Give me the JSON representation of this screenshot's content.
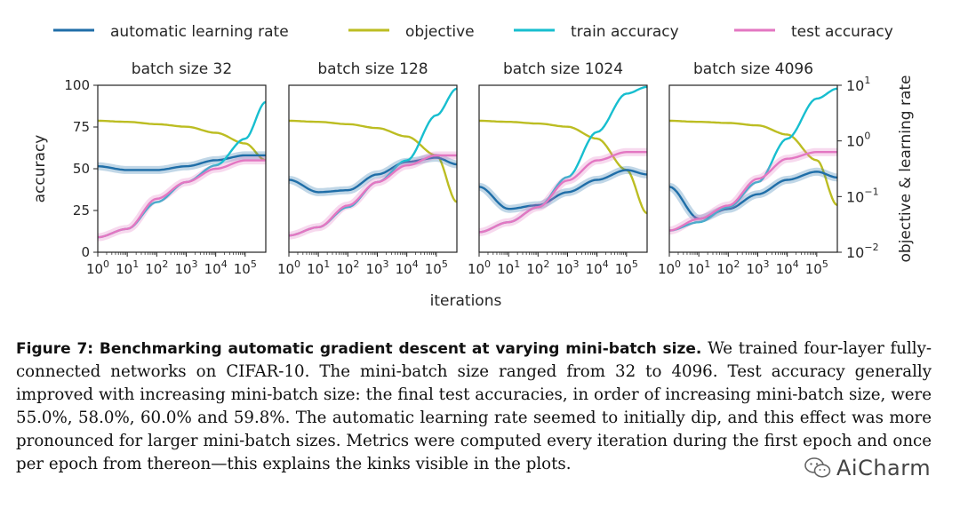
{
  "figure": {
    "legend": [
      {
        "name": "automatic learning rate",
        "color": "#1f6ea8"
      },
      {
        "name": "objective",
        "color": "#bcbd22"
      },
      {
        "name": "train accuracy",
        "color": "#17becf"
      },
      {
        "name": "test accuracy",
        "color": "#e377c2"
      }
    ],
    "xlabel": "iterations",
    "ylabel_left": "accuracy",
    "ylabel_right": "objective & learning rate"
  },
  "chart_data": [
    {
      "type": "line",
      "title": "batch size 32",
      "xscale": "log",
      "xlim": [
        1,
        500000
      ],
      "ylim_left": [
        0,
        100
      ],
      "yscale_right": "log",
      "ylim_right": [
        0.01,
        10
      ],
      "x": [
        1,
        10,
        100,
        1000,
        10000,
        100000,
        500000
      ],
      "series": [
        {
          "name": "automatic learning rate",
          "axis": "right",
          "values": [
            0.35,
            0.3,
            0.3,
            0.35,
            0.45,
            0.55,
            0.55
          ]
        },
        {
          "name": "objective",
          "axis": "right",
          "values": [
            2.3,
            2.2,
            2.0,
            1.8,
            1.4,
            0.9,
            0.45
          ]
        },
        {
          "name": "train accuracy",
          "axis": "left",
          "values": [
            9,
            14,
            30,
            42,
            52,
            68,
            90
          ]
        },
        {
          "name": "test accuracy",
          "axis": "left",
          "values": [
            9,
            14,
            32,
            42,
            50,
            55,
            55
          ]
        }
      ]
    },
    {
      "type": "line",
      "title": "batch size 128",
      "xscale": "log",
      "xlim": [
        1,
        500000
      ],
      "ylim_left": [
        0,
        100
      ],
      "yscale_right": "log",
      "ylim_right": [
        0.01,
        10
      ],
      "x": [
        1,
        10,
        100,
        1000,
        10000,
        100000,
        500000
      ],
      "series": [
        {
          "name": "automatic learning rate",
          "axis": "right",
          "values": [
            0.2,
            0.12,
            0.13,
            0.25,
            0.42,
            0.5,
            0.38
          ]
        },
        {
          "name": "objective",
          "axis": "right",
          "values": [
            2.3,
            2.2,
            2.0,
            1.7,
            1.2,
            0.55,
            0.08
          ]
        },
        {
          "name": "train accuracy",
          "axis": "left",
          "values": [
            10,
            15,
            27,
            42,
            55,
            82,
            98
          ]
        },
        {
          "name": "test accuracy",
          "axis": "left",
          "values": [
            10,
            15,
            28,
            42,
            52,
            58,
            58
          ]
        }
      ]
    },
    {
      "type": "line",
      "title": "batch size 1024",
      "xscale": "log",
      "xlim": [
        1,
        500000
      ],
      "ylim_left": [
        0,
        100
      ],
      "yscale_right": "log",
      "ylim_right": [
        0.01,
        10
      ],
      "x": [
        1,
        10,
        100,
        1000,
        10000,
        100000,
        500000
      ],
      "series": [
        {
          "name": "automatic learning rate",
          "axis": "right",
          "values": [
            0.15,
            0.06,
            0.07,
            0.12,
            0.2,
            0.3,
            0.25
          ]
        },
        {
          "name": "objective",
          "axis": "right",
          "values": [
            2.3,
            2.2,
            2.05,
            1.8,
            1.1,
            0.3,
            0.05
          ]
        },
        {
          "name": "train accuracy",
          "axis": "left",
          "values": [
            12,
            18,
            27,
            45,
            72,
            95,
            99
          ]
        },
        {
          "name": "test accuracy",
          "axis": "left",
          "values": [
            12,
            18,
            27,
            43,
            55,
            60,
            60
          ]
        }
      ]
    },
    {
      "type": "line",
      "title": "batch size 4096",
      "xscale": "log",
      "xlim": [
        1,
        500000
      ],
      "ylim_left": [
        0,
        100
      ],
      "yscale_right": "log",
      "ylim_right": [
        0.01,
        10
      ],
      "x": [
        1,
        10,
        100,
        1000,
        10000,
        100000,
        500000
      ],
      "series": [
        {
          "name": "automatic learning rate",
          "axis": "right",
          "values": [
            0.15,
            0.04,
            0.06,
            0.11,
            0.2,
            0.28,
            0.22
          ]
        },
        {
          "name": "objective",
          "axis": "right",
          "values": [
            2.3,
            2.2,
            2.1,
            1.9,
            1.3,
            0.45,
            0.07
          ]
        },
        {
          "name": "train accuracy",
          "axis": "left",
          "values": [
            13,
            18,
            27,
            42,
            68,
            92,
            98
          ]
        },
        {
          "name": "test accuracy",
          "axis": "left",
          "values": [
            13,
            20,
            28,
            44,
            56,
            60,
            60
          ]
        }
      ]
    }
  ],
  "caption": {
    "label": "Figure 7: Benchmarking automatic gradient descent at varying mini-batch size.",
    "text": "We trained four-layer fully-connected networks on CIFAR-10. The mini-batch size ranged from 32 to 4096. Test accuracy generally improved with increasing mini-batch size: the final test accuracies, in order of increasing mini-batch size, were 55.0%, 58.0%, 60.0% and 59.8%. The automatic learning rate seemed to initially dip, and this effect was more pronounced for larger mini-batch sizes. Metrics were computed every iteration during the first epoch and once per epoch from thereon—this explains the kinks visible in the plots."
  },
  "watermark": {
    "text": "AiCharm",
    "icon": "wechat-icon"
  }
}
